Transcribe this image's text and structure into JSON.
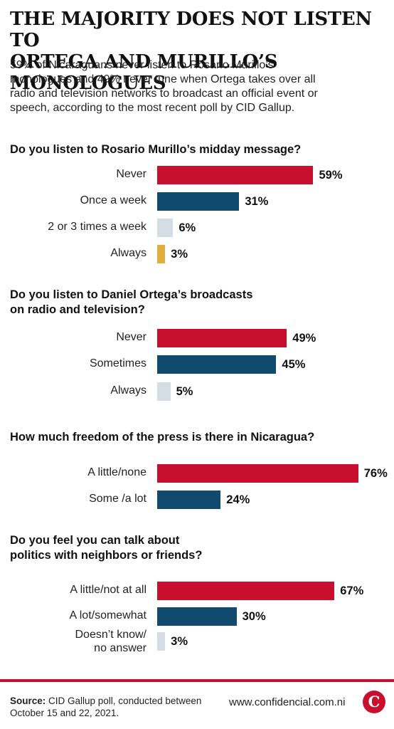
{
  "header": {
    "title_lines": [
      "THE MAJORITY DOES NOT LISTEN TO",
      "ORTEGA AND MURILLO’S MONOLOGUES"
    ],
    "subtitle_lines": [
      "59% of Nicaraguans never listen to Rosario Murillo’s",
      "monologues and 49% never tune when Ortega takes over all",
      "radio and television networks to broadcast an official event or",
      "speech, according to the most recent poll by CID Gallup."
    ]
  },
  "colors": {
    "red": "#c8102e",
    "navy": "#104a6e",
    "light_gray": "#d5dde4",
    "gold": "#e3ad3b"
  },
  "chart_data": [
    {
      "type": "bar",
      "orientation": "horizontal",
      "question_lines": [
        "Do you listen to Rosario Murillo’s midday message?"
      ],
      "categories": [
        [
          "Never"
        ],
        [
          "Once a week"
        ],
        [
          "2 or 3 times a week"
        ],
        [
          "Always"
        ]
      ],
      "values": [
        59,
        31,
        6,
        3
      ],
      "value_labels": [
        "59%",
        "31%",
        "6%",
        "3%"
      ],
      "colors": [
        "red",
        "navy",
        "light_gray",
        "gold"
      ],
      "unit": "%"
    },
    {
      "type": "bar",
      "orientation": "horizontal",
      "question_lines": [
        "Do you listen to Daniel Ortega’s broadcasts",
        "on radio and television?"
      ],
      "categories": [
        [
          "Never"
        ],
        [
          "Sometimes"
        ],
        [
          "Always"
        ]
      ],
      "values": [
        49,
        45,
        5
      ],
      "value_labels": [
        "49%",
        "45%",
        "5%"
      ],
      "colors": [
        "red",
        "navy",
        "light_gray"
      ],
      "unit": "%"
    },
    {
      "type": "bar",
      "orientation": "horizontal",
      "question_lines": [
        "How much freedom of the press is there in Nicaragua?"
      ],
      "categories": [
        [
          "A little/none"
        ],
        [
          "Some /a lot"
        ]
      ],
      "values": [
        76,
        24
      ],
      "value_labels": [
        "76%",
        "24%"
      ],
      "colors": [
        "red",
        "navy"
      ],
      "unit": "%"
    },
    {
      "type": "bar",
      "orientation": "horizontal",
      "question_lines": [
        "Do you feel you can talk about",
        "politics with neighbors or friends?"
      ],
      "categories": [
        [
          "A little/not at all"
        ],
        [
          "A lot/somewhat"
        ],
        [
          "Doesn’t know/",
          "no answer"
        ]
      ],
      "values": [
        67,
        30,
        3
      ],
      "value_labels": [
        "67%",
        "30%",
        "3%"
      ],
      "colors": [
        "red",
        "navy",
        "light_gray"
      ],
      "unit": "%"
    }
  ],
  "footer": {
    "source_label": "Source:",
    "source_text_lines": [
      " CID Gallup poll, conducted between",
      "October 15 and 22, 2021."
    ],
    "url": "www.confidencial.com.ni",
    "logo_letter": "C"
  }
}
